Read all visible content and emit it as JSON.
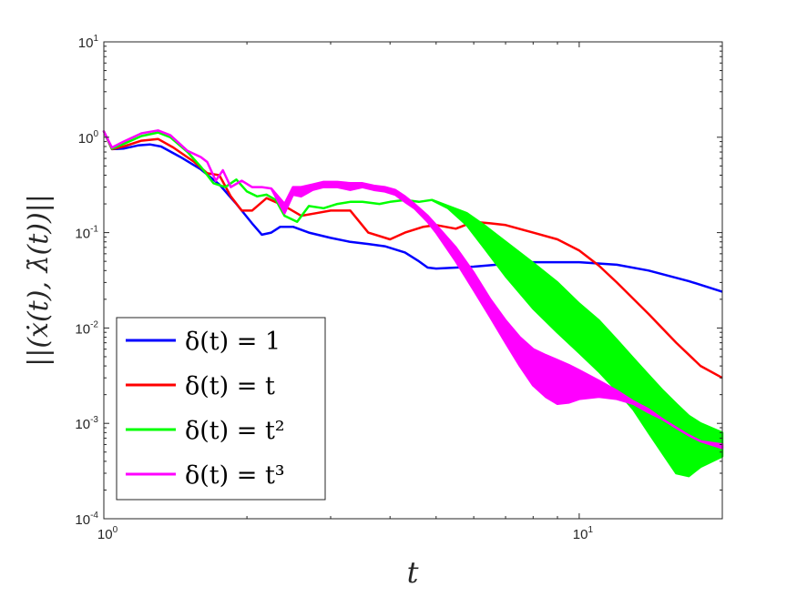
{
  "chart_data": {
    "type": "line",
    "xscale": "log",
    "yscale": "log",
    "xlim": [
      1,
      20
    ],
    "ylim": [
      0.0001,
      10
    ],
    "xticks": [
      {
        "base": "10",
        "exp": "0"
      },
      {
        "base": "10",
        "exp": "1"
      }
    ],
    "yticks": [
      {
        "base": "10",
        "exp": "1"
      },
      {
        "base": "10",
        "exp": "0"
      },
      {
        "base": "10",
        "exp": "-1"
      },
      {
        "base": "10",
        "exp": "-2"
      },
      {
        "base": "10",
        "exp": "-3"
      },
      {
        "base": "10",
        "exp": "-4"
      }
    ],
    "xlabel": "t",
    "ylabel": "||(ẋ(t), λ̇(t))||",
    "legend_position": "bottom-left",
    "colors": {
      "axis": "#262626",
      "blue": "#0000ff",
      "red": "#ff0000",
      "green": "#00ff00",
      "magenta": "#ff00ff"
    },
    "series": [
      {
        "name": "δ(t) = 1",
        "color": "#0000ff",
        "band": false,
        "x": [
          1.0,
          1.04,
          1.1,
          1.18,
          1.25,
          1.32,
          1.45,
          1.6,
          1.75,
          1.9,
          2.05,
          2.15,
          2.25,
          2.35,
          2.5,
          2.7,
          3.0,
          3.3,
          3.6,
          3.9,
          4.3,
          4.6,
          4.8,
          5.0,
          6.0,
          7.0,
          8.0,
          10.0,
          12.0,
          14.0,
          17.0,
          20.0
        ],
        "y": [
          1.15,
          0.75,
          0.76,
          0.82,
          0.84,
          0.8,
          0.62,
          0.46,
          0.32,
          0.2,
          0.125,
          0.095,
          0.1,
          0.115,
          0.115,
          0.1,
          0.088,
          0.08,
          0.076,
          0.072,
          0.062,
          0.05,
          0.043,
          0.042,
          0.044,
          0.047,
          0.049,
          0.049,
          0.046,
          0.04,
          0.031,
          0.024
        ]
      },
      {
        "name": "δ(t) = t",
        "color": "#ff0000",
        "band": false,
        "x": [
          1.0,
          1.04,
          1.1,
          1.2,
          1.3,
          1.4,
          1.55,
          1.65,
          1.75,
          1.85,
          1.95,
          2.05,
          2.2,
          2.4,
          2.6,
          2.8,
          3.0,
          3.3,
          3.6,
          4.0,
          4.3,
          4.7,
          5.0,
          5.5,
          6.0,
          6.5,
          7.0,
          8.0,
          9.0,
          10.0,
          11.0,
          12.0,
          14.0,
          16.0,
          18.0,
          20.0
        ],
        "y": [
          1.15,
          0.75,
          0.8,
          0.92,
          0.96,
          0.78,
          0.55,
          0.42,
          0.4,
          0.24,
          0.17,
          0.17,
          0.23,
          0.19,
          0.15,
          0.16,
          0.17,
          0.17,
          0.1,
          0.085,
          0.1,
          0.115,
          0.12,
          0.11,
          0.13,
          0.125,
          0.12,
          0.1,
          0.085,
          0.065,
          0.045,
          0.03,
          0.014,
          0.007,
          0.004,
          0.003
        ]
      },
      {
        "name": "δ(t) = t²",
        "color": "#00ff00",
        "band": true,
        "x": [
          1.0,
          1.04,
          1.1,
          1.2,
          1.3,
          1.38,
          1.5,
          1.6,
          1.7,
          1.8,
          1.9,
          2.0,
          2.1,
          2.2,
          2.3,
          2.4,
          2.55,
          2.7,
          2.9,
          3.1,
          3.3,
          3.5,
          3.8,
          4.0,
          4.3,
          4.6,
          4.9,
          5.3,
          5.8,
          6.3,
          7.0,
          8.0,
          9.0,
          10.0,
          11.0,
          12.0,
          13.0,
          14.0,
          15.0,
          16.0,
          17.0,
          18.0,
          20.0
        ],
        "lo": [
          1.15,
          0.76,
          0.85,
          1.03,
          1.12,
          1.0,
          0.7,
          0.49,
          0.33,
          0.3,
          0.36,
          0.27,
          0.24,
          0.25,
          0.22,
          0.15,
          0.13,
          0.19,
          0.18,
          0.2,
          0.21,
          0.21,
          0.2,
          0.21,
          0.22,
          0.21,
          0.22,
          0.18,
          0.12,
          0.07,
          0.035,
          0.016,
          0.009,
          0.0055,
          0.0035,
          0.0022,
          0.0014,
          0.0008,
          0.00048,
          0.0003,
          0.00028,
          0.00035,
          0.00045
        ],
        "hi": [
          1.15,
          0.76,
          0.85,
          1.03,
          1.12,
          1.0,
          0.7,
          0.49,
          0.33,
          0.3,
          0.36,
          0.27,
          0.24,
          0.25,
          0.22,
          0.15,
          0.13,
          0.19,
          0.18,
          0.2,
          0.21,
          0.21,
          0.2,
          0.21,
          0.22,
          0.21,
          0.22,
          0.19,
          0.16,
          0.12,
          0.08,
          0.048,
          0.03,
          0.018,
          0.012,
          0.0075,
          0.0048,
          0.0032,
          0.0022,
          0.0016,
          0.0012,
          0.001,
          0.0008
        ]
      },
      {
        "name": "δ(t) = t³",
        "color": "#ff00ff",
        "band": true,
        "x": [
          1.0,
          1.04,
          1.1,
          1.2,
          1.3,
          1.38,
          1.5,
          1.6,
          1.65,
          1.72,
          1.78,
          1.85,
          1.95,
          2.05,
          2.15,
          2.25,
          2.4,
          2.5,
          2.6,
          2.75,
          2.9,
          3.1,
          3.3,
          3.5,
          3.7,
          3.9,
          4.1,
          4.3,
          4.5,
          4.8,
          5.0,
          5.5,
          6.0,
          6.5,
          7.0,
          7.5,
          8.0,
          8.5,
          9.0,
          9.5,
          10.0,
          11.0,
          12.0,
          13.0,
          14.0,
          15.0,
          16.0,
          17.0,
          18.0,
          20.0
        ],
        "lo": [
          1.15,
          0.78,
          0.9,
          1.1,
          1.18,
          1.05,
          0.72,
          0.62,
          0.55,
          0.35,
          0.45,
          0.3,
          0.35,
          0.3,
          0.3,
          0.29,
          0.16,
          0.25,
          0.24,
          0.28,
          0.3,
          0.3,
          0.28,
          0.3,
          0.28,
          0.27,
          0.25,
          0.21,
          0.18,
          0.13,
          0.1,
          0.05,
          0.025,
          0.013,
          0.007,
          0.004,
          0.0025,
          0.0019,
          0.0016,
          0.00165,
          0.0018,
          0.0019,
          0.0018,
          0.0016,
          0.0013,
          0.0011,
          0.0009,
          0.00075,
          0.00065,
          0.00055
        ],
        "hi": [
          1.15,
          0.78,
          0.9,
          1.1,
          1.18,
          1.05,
          0.72,
          0.62,
          0.55,
          0.35,
          0.45,
          0.3,
          0.35,
          0.3,
          0.3,
          0.29,
          0.2,
          0.3,
          0.3,
          0.32,
          0.34,
          0.34,
          0.33,
          0.33,
          0.31,
          0.3,
          0.28,
          0.24,
          0.2,
          0.15,
          0.12,
          0.07,
          0.038,
          0.02,
          0.012,
          0.008,
          0.006,
          0.0052,
          0.0046,
          0.0041,
          0.0036,
          0.0028,
          0.0022,
          0.0017,
          0.0014,
          0.0011,
          0.0009,
          0.00075,
          0.00065,
          0.0006
        ]
      }
    ]
  }
}
